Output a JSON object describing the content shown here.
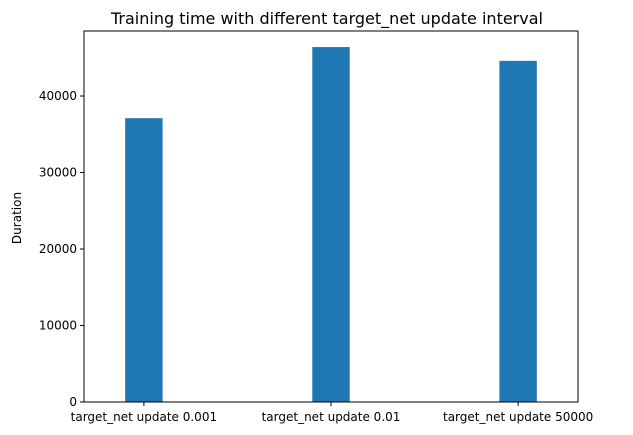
{
  "chart_data": {
    "type": "bar",
    "title": "Training time with different target_net update interval",
    "xlabel": "",
    "ylabel": "Duration",
    "categories": [
      "target_net update 0.001",
      "target_net update 0.01",
      "target_net update 50000"
    ],
    "values": [
      37100,
      46400,
      44600
    ],
    "ylim": [
      0,
      48500
    ],
    "yticks": [
      0,
      10000,
      20000,
      30000,
      40000
    ],
    "bar_color": "#1f77b4",
    "grid": false,
    "legend": "none"
  }
}
